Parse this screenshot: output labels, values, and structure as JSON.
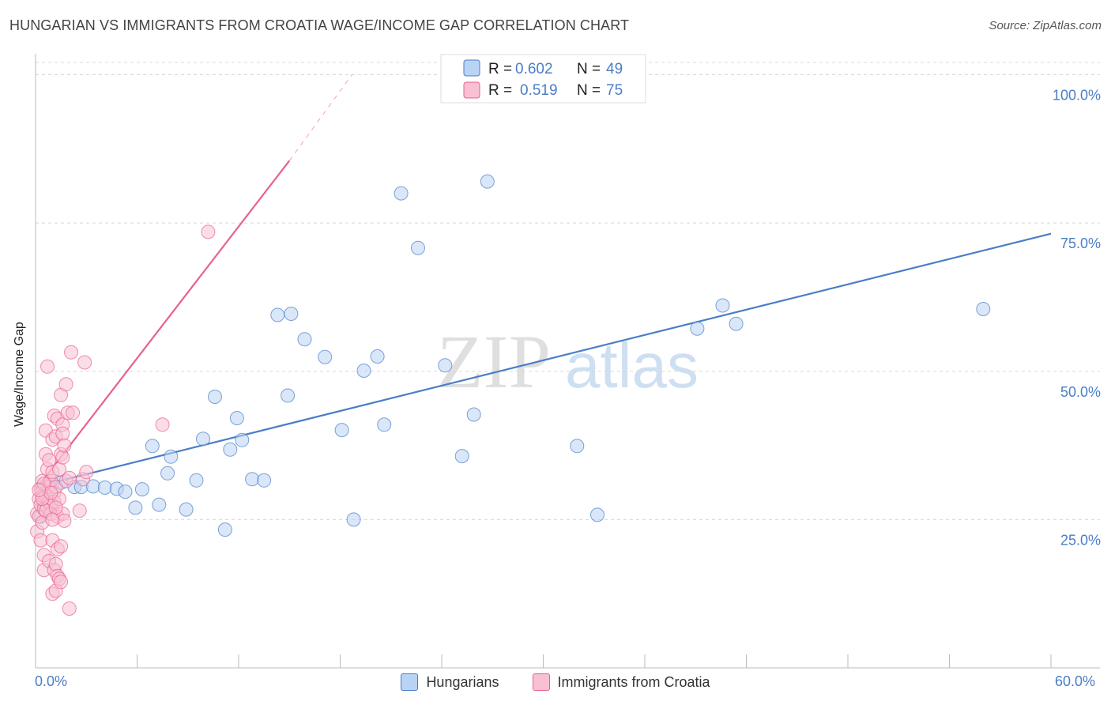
{
  "header": {
    "title": "HUNGARIAN VS IMMIGRANTS FROM CROATIA WAGE/INCOME GAP CORRELATION CHART",
    "source": "Source: ZipAtlas.com"
  },
  "watermark": {
    "zip": "ZIP",
    "atlas": "atlas"
  },
  "colors": {
    "blue": "#4a7ec6",
    "blue_fill": "#b9d3f4",
    "pink": "#e8608e",
    "pink_fill": "#f8c1d3",
    "grid": "#d8d8d8"
  },
  "legend_top": [
    {
      "r_label": "R =",
      "r_value": "0.602",
      "n_label": "N =",
      "n_value": "49"
    },
    {
      "r_label": "R =",
      "r_value": "0.519",
      "n_label": "N =",
      "n_value": "75"
    }
  ],
  "legend_bottom": [
    "Hungarians",
    "Immigrants from Croatia"
  ],
  "chart_data": {
    "type": "scatter",
    "title": "HUNGARIAN VS IMMIGRANTS FROM CROATIA WAGE/INCOME GAP CORRELATION CHART",
    "xlabel": "",
    "ylabel": "Wage/Income Gap",
    "xlim": [
      0,
      60
    ],
    "ylim": [
      0,
      103
    ],
    "x_tick_labels": [
      "0.0%",
      "60.0%"
    ],
    "y_ticks": [
      25,
      50,
      75,
      100
    ],
    "y_tick_labels": [
      "25.0%",
      "50.0%",
      "75.0%",
      "100.0%"
    ],
    "series": [
      {
        "name": "Hungarians",
        "r": 0.602,
        "n": 49,
        "trend": {
          "x0": 0,
          "y0": 30.5,
          "x1": 60,
          "y1": 73.2,
          "dashed_to": null
        },
        "points": [
          [
            0.3,
            25.5
          ],
          [
            0.5,
            27.8
          ],
          [
            0.7,
            30.6
          ],
          [
            1.0,
            31.0
          ],
          [
            1.5,
            31.2
          ],
          [
            2.3,
            30.5
          ],
          [
            2.7,
            30.5
          ],
          [
            3.4,
            30.6
          ],
          [
            4.1,
            30.4
          ],
          [
            4.8,
            30.2
          ],
          [
            5.3,
            29.7
          ],
          [
            5.9,
            27.0
          ],
          [
            6.3,
            30.1
          ],
          [
            6.9,
            37.4
          ],
          [
            7.3,
            27.5
          ],
          [
            8.0,
            35.6
          ],
          [
            7.8,
            32.8
          ],
          [
            8.9,
            26.7
          ],
          [
            9.5,
            31.6
          ],
          [
            9.9,
            38.6
          ],
          [
            10.6,
            45.7
          ],
          [
            11.2,
            23.3
          ],
          [
            11.5,
            36.8
          ],
          [
            11.9,
            42.1
          ],
          [
            12.2,
            38.4
          ],
          [
            12.8,
            31.8
          ],
          [
            13.5,
            31.6
          ],
          [
            14.3,
            59.5
          ],
          [
            14.9,
            45.9
          ],
          [
            15.1,
            59.7
          ],
          [
            15.9,
            55.4
          ],
          [
            17.1,
            52.4
          ],
          [
            18.1,
            40.1
          ],
          [
            18.8,
            25.0
          ],
          [
            19.4,
            50.1
          ],
          [
            20.2,
            52.5
          ],
          [
            20.6,
            41.0
          ],
          [
            21.6,
            80.0
          ],
          [
            22.6,
            70.8
          ],
          [
            24.2,
            51.0
          ],
          [
            25.2,
            35.7
          ],
          [
            25.9,
            42.7
          ],
          [
            26.7,
            82.0
          ],
          [
            32.0,
            37.4
          ],
          [
            33.2,
            25.8
          ],
          [
            39.1,
            57.2
          ],
          [
            40.6,
            61.1
          ],
          [
            41.4,
            58.0
          ],
          [
            56.0,
            60.5
          ]
        ]
      },
      {
        "name": "Immigrants from Croatia",
        "r": 0.519,
        "n": 75,
        "trend": {
          "x0": 0,
          "y0": 30.0,
          "x1": 15.0,
          "y1": 85.5,
          "dashed_to": {
            "x": 18.7,
            "y": 100
          }
        },
        "points": [
          [
            0.1,
            23.0
          ],
          [
            0.1,
            26.0
          ],
          [
            0.2,
            28.5
          ],
          [
            0.2,
            25.5
          ],
          [
            0.3,
            21.5
          ],
          [
            0.3,
            30.2
          ],
          [
            0.3,
            27.5
          ],
          [
            0.4,
            24.5
          ],
          [
            0.4,
            29.0
          ],
          [
            0.4,
            31.5
          ],
          [
            0.5,
            19.0
          ],
          [
            0.5,
            16.5
          ],
          [
            0.5,
            26.8
          ],
          [
            0.6,
            36.0
          ],
          [
            0.6,
            29.0
          ],
          [
            0.6,
            40.0
          ],
          [
            0.7,
            33.5
          ],
          [
            0.7,
            27.0
          ],
          [
            0.7,
            50.8
          ],
          [
            0.8,
            35.0
          ],
          [
            0.8,
            28.0
          ],
          [
            0.8,
            30.5
          ],
          [
            0.8,
            18.0
          ],
          [
            0.9,
            27.5
          ],
          [
            0.9,
            31.5
          ],
          [
            0.9,
            26.0
          ],
          [
            1.0,
            38.5
          ],
          [
            1.0,
            33.0
          ],
          [
            1.0,
            12.5
          ],
          [
            1.0,
            21.5
          ],
          [
            1.1,
            42.5
          ],
          [
            1.1,
            29.5
          ],
          [
            1.1,
            16.5
          ],
          [
            1.1,
            28.0
          ],
          [
            1.2,
            39.0
          ],
          [
            1.2,
            17.5
          ],
          [
            1.2,
            13.0
          ],
          [
            1.2,
            30.5
          ],
          [
            1.3,
            15.5
          ],
          [
            1.3,
            42.0
          ],
          [
            1.3,
            25.5
          ],
          [
            1.3,
            20.0
          ],
          [
            1.4,
            28.5
          ],
          [
            1.4,
            15.0
          ],
          [
            1.4,
            33.5
          ],
          [
            1.5,
            36.0
          ],
          [
            1.5,
            46.0
          ],
          [
            1.5,
            14.5
          ],
          [
            1.5,
            20.5
          ],
          [
            1.6,
            35.5
          ],
          [
            1.6,
            26.0
          ],
          [
            1.6,
            41.0
          ],
          [
            1.6,
            39.5
          ],
          [
            1.7,
            24.8
          ],
          [
            1.7,
            37.5
          ],
          [
            1.8,
            47.8
          ],
          [
            1.8,
            31.5
          ],
          [
            1.9,
            43.0
          ],
          [
            2.0,
            10.0
          ],
          [
            2.1,
            53.2
          ],
          [
            2.2,
            43.0
          ],
          [
            2.6,
            26.5
          ],
          [
            2.8,
            31.8
          ],
          [
            2.9,
            51.5
          ],
          [
            3.0,
            33.0
          ],
          [
            2.0,
            32.0
          ],
          [
            0.5,
            31.0
          ],
          [
            0.6,
            26.5
          ],
          [
            1.2,
            27.0
          ],
          [
            0.4,
            28.5
          ],
          [
            0.9,
            29.5
          ],
          [
            0.2,
            30.0
          ],
          [
            1.0,
            25.0
          ],
          [
            7.5,
            41.0
          ],
          [
            10.2,
            73.5
          ]
        ]
      }
    ]
  }
}
